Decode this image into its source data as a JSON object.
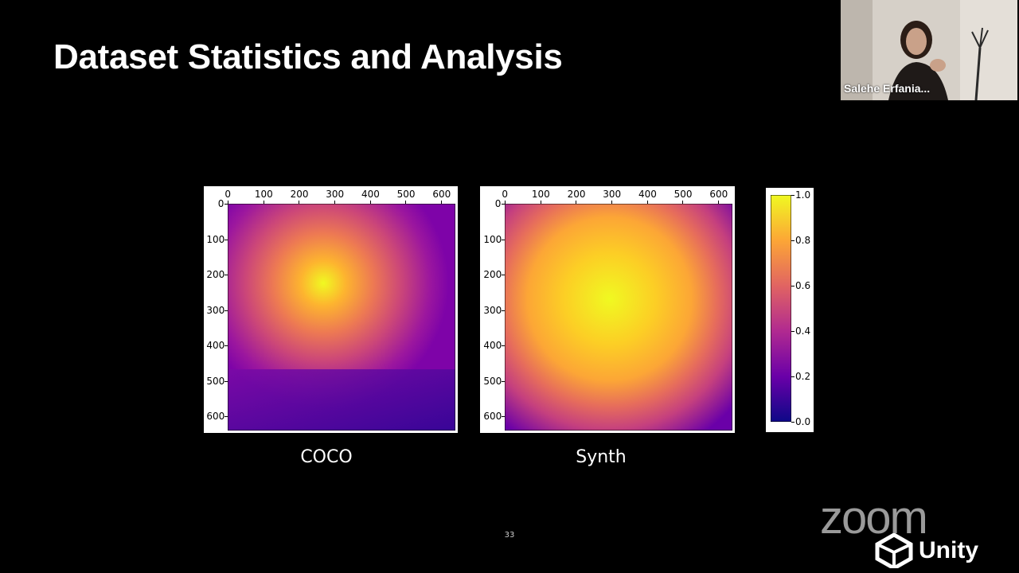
{
  "slide": {
    "title": "Dataset Statistics and Analysis",
    "page_number": "33"
  },
  "heatmaps": [
    {
      "caption": "COCO",
      "x_ticks": [
        "0",
        "100",
        "200",
        "300",
        "400",
        "500",
        "600"
      ],
      "y_ticks": [
        "0",
        "100",
        "200",
        "300",
        "400",
        "500",
        "600"
      ]
    },
    {
      "caption": "Synth",
      "x_ticks": [
        "0",
        "100",
        "200",
        "300",
        "400",
        "500",
        "600"
      ],
      "y_ticks": [
        "0",
        "100",
        "200",
        "300",
        "400",
        "500",
        "600"
      ]
    }
  ],
  "colorbar": {
    "ticks": [
      "1.0",
      "0.8",
      "0.6",
      "0.4",
      "0.2",
      "0.0"
    ],
    "colormap": "plasma"
  },
  "video": {
    "participant_name": "Salehe Erfania..."
  },
  "branding": {
    "zoom_logo_text": "zoom",
    "unity_logo_text": "Unity"
  },
  "colors": {
    "background": "#000000",
    "title": "#ffffff"
  },
  "chart_data": [
    {
      "type": "heatmap",
      "title": "COCO",
      "xlabel": "",
      "ylabel": "",
      "xlim": [
        0,
        640
      ],
      "ylim": [
        640,
        0
      ],
      "x_ticks": [
        0,
        100,
        200,
        300,
        400,
        500,
        600
      ],
      "y_ticks": [
        0,
        100,
        200,
        300,
        400,
        500,
        600
      ],
      "colormap": "plasma",
      "value_range": [
        0,
        1
      ],
      "peak": {
        "x": 270,
        "y": 220,
        "value": 1.0
      }
    },
    {
      "type": "heatmap",
      "title": "Synth",
      "xlabel": "",
      "ylabel": "",
      "xlim": [
        0,
        640
      ],
      "ylim": [
        640,
        0
      ],
      "x_ticks": [
        0,
        100,
        200,
        300,
        400,
        500,
        600
      ],
      "y_ticks": [
        0,
        100,
        200,
        300,
        400,
        500,
        600
      ],
      "colormap": "plasma",
      "value_range": [
        0,
        1
      ],
      "peak": {
        "x": 300,
        "y": 250,
        "value": 1.0
      }
    }
  ]
}
